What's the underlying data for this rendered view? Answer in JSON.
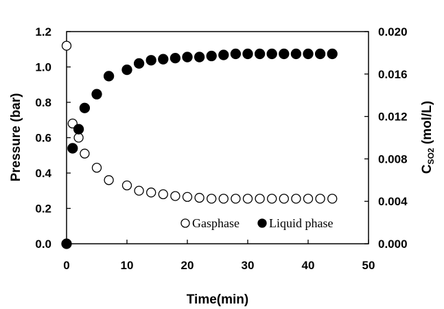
{
  "chart_data": {
    "type": "scatter",
    "xlabel": "Time(min)",
    "ylabel": "Pressure (bar)",
    "y2label_main": "C",
    "y2label_sub": "SO2",
    "y2label_unit": " (mol/L)",
    "xlim": [
      0,
      50
    ],
    "ylim": [
      0,
      1.2
    ],
    "y2lim": [
      0,
      0.02
    ],
    "x_ticks": [
      "0",
      "10",
      "20",
      "30",
      "40",
      "50"
    ],
    "y_ticks": [
      "0.0",
      "0.2",
      "0.4",
      "0.6",
      "0.8",
      "1.0",
      "1.2"
    ],
    "y2_ticks": [
      "0.000",
      "0.004",
      "0.008",
      "0.012",
      "0.016",
      "0.020"
    ],
    "grid": false,
    "legend_position": "bottom-right",
    "series": [
      {
        "name": "Gasphase",
        "axis": "left",
        "marker": "open-circle",
        "x": [
          0,
          1,
          2,
          3,
          5,
          7,
          10,
          12,
          14,
          16,
          18,
          20,
          22,
          24,
          26,
          28,
          30,
          32,
          34,
          36,
          38,
          40,
          42,
          44
        ],
        "y": [
          1.12,
          0.68,
          0.6,
          0.51,
          0.43,
          0.36,
          0.33,
          0.3,
          0.29,
          0.28,
          0.27,
          0.265,
          0.26,
          0.255,
          0.255,
          0.255,
          0.255,
          0.255,
          0.255,
          0.255,
          0.255,
          0.255,
          0.255,
          0.255
        ]
      },
      {
        "name": "Liquid phase",
        "axis": "right",
        "marker": "filled-circle",
        "x": [
          0,
          1,
          2,
          3,
          5,
          7,
          10,
          12,
          14,
          16,
          18,
          20,
          22,
          24,
          26,
          28,
          30,
          32,
          34,
          36,
          38,
          40,
          42,
          44
        ],
        "y": [
          0.0,
          0.009,
          0.0108,
          0.0128,
          0.0141,
          0.0158,
          0.0164,
          0.017,
          0.0173,
          0.0174,
          0.0175,
          0.0176,
          0.0176,
          0.0177,
          0.0178,
          0.0179,
          0.0179,
          0.0179,
          0.0179,
          0.0179,
          0.0179,
          0.0179,
          0.0179,
          0.0179
        ]
      }
    ]
  }
}
